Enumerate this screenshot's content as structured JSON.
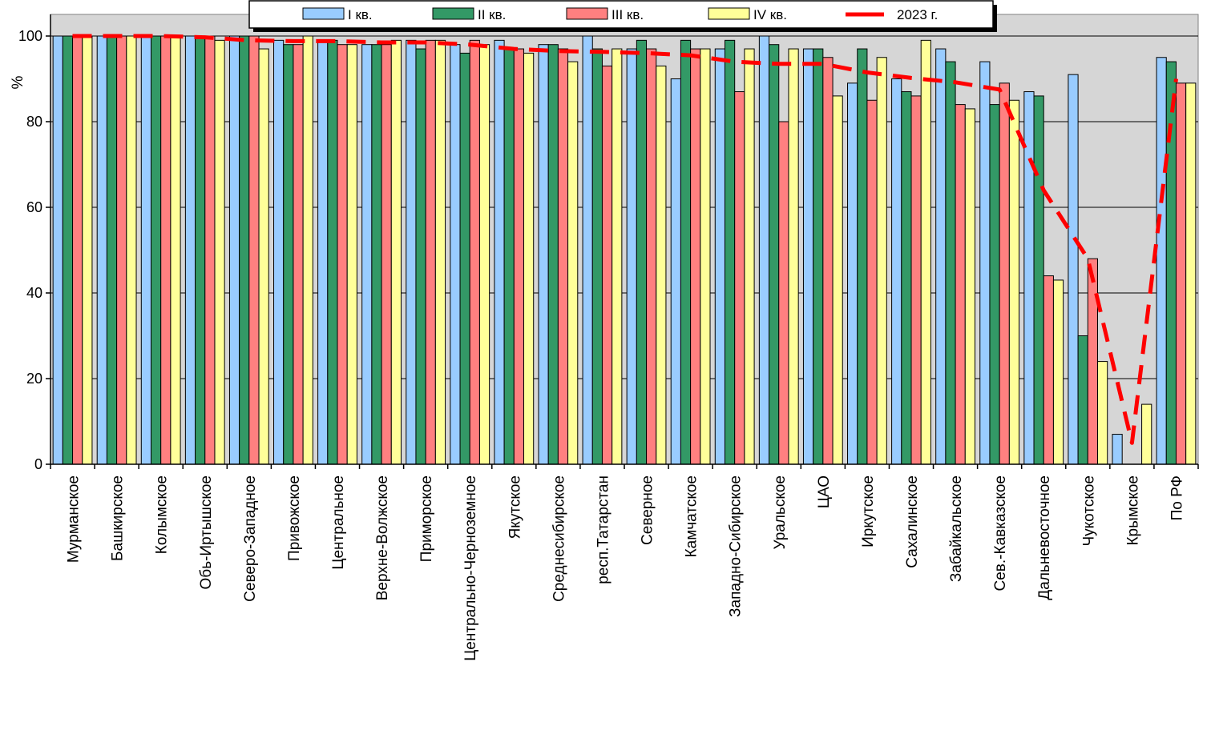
{
  "chart_data": {
    "type": "bar",
    "ylabel": "%",
    "ylim": [
      0,
      100
    ],
    "yticks": [
      0,
      20,
      40,
      60,
      80,
      100
    ],
    "grid": true,
    "legend_position": "top",
    "categories": [
      "Мурманское",
      "Башкирское",
      "Колымское",
      "Обь-Иртышское",
      "Северо-Западное",
      "Привожское",
      "Центральное",
      "Верхне-Волжское",
      "Приморское",
      "Центрально-Черноземное",
      "Якутское",
      "Среднесибирское",
      "респ.Татарстан",
      "Северное",
      "Камчатское",
      "Западно-Сибирское",
      "Уральское",
      "ЦАО",
      "Иркутское",
      "Сахалинское",
      "Забайкальское",
      "Сев.-Кавказское",
      "Дальневосточное",
      "Чукотское",
      "Крымское",
      "По РФ"
    ],
    "series": [
      {
        "name": "I кв.",
        "color": "#99ccff",
        "values": [
          100,
          100,
          100,
          100,
          100,
          99,
          99,
          98,
          99,
          98,
          99,
          98,
          100,
          97,
          90,
          97,
          100,
          97,
          89,
          90,
          97,
          94,
          87,
          91,
          7,
          95
        ]
      },
      {
        "name": "II кв.",
        "color": "#339966",
        "values": [
          100,
          100,
          100,
          100,
          100,
          98,
          99,
          98,
          97,
          96,
          97,
          98,
          97,
          99,
          99,
          99,
          98,
          97,
          97,
          87,
          94,
          84,
          86,
          30,
          0,
          94
        ]
      },
      {
        "name": "III кв.",
        "color": "#ff8080",
        "values": [
          100,
          100,
          100,
          100,
          100,
          98,
          98,
          98,
          99,
          99,
          97,
          97,
          93,
          97,
          97,
          87,
          80,
          95,
          85,
          86,
          84,
          89,
          44,
          48,
          0,
          89
        ]
      },
      {
        "name": "IV кв.",
        "color": "#ffff99",
        "values": [
          100,
          100,
          100,
          99,
          97,
          100,
          98,
          99,
          99,
          98,
          96,
          94,
          97,
          93,
          97,
          97,
          97,
          86,
          95,
          99,
          83,
          85,
          43,
          24,
          14,
          89
        ]
      },
      {
        "name": "2023 г.",
        "type": "line",
        "style": "dashed",
        "color": "#ff0000",
        "values": [
          100,
          100,
          100,
          99.7,
          99,
          98.8,
          98.8,
          98.5,
          98.5,
          98,
          97,
          96.5,
          96.3,
          96,
          95.5,
          94,
          93.5,
          93.5,
          91.5,
          90.2,
          89.2,
          87.5,
          64,
          48,
          5,
          90
        ]
      }
    ]
  }
}
